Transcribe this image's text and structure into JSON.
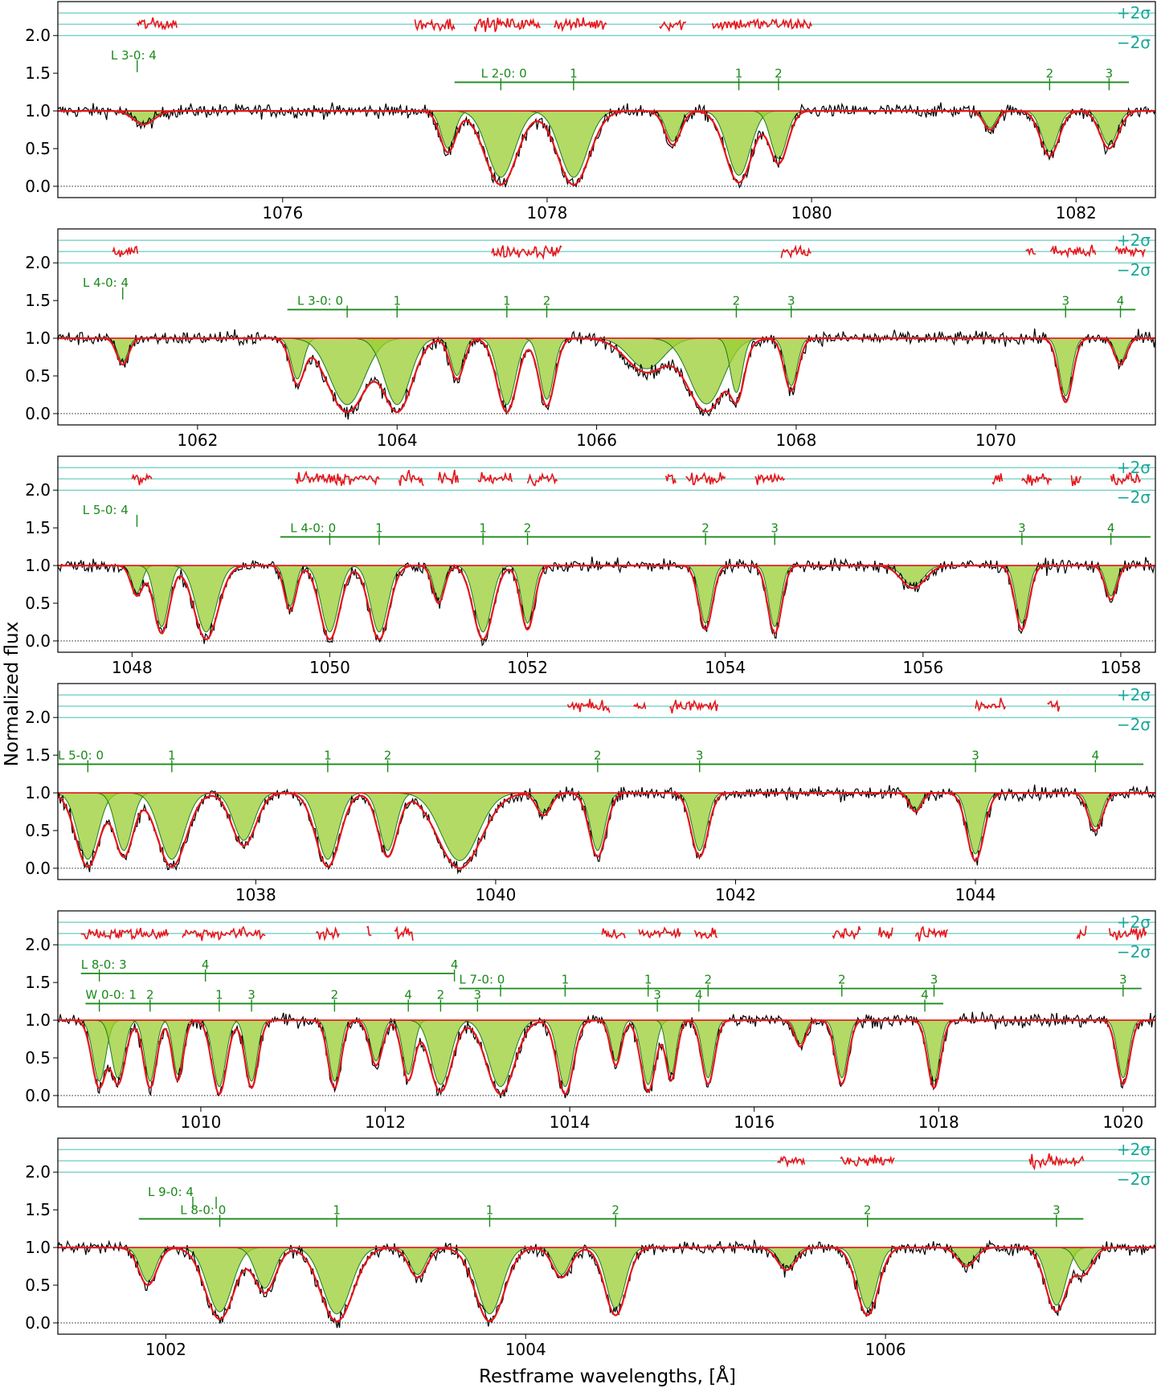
{
  "chart_data": {
    "type": "line",
    "ylabel": "Normalized flux",
    "xlabel": "Restframe wavelengths, [Å]",
    "residual_labels": [
      "+2σ",
      "−2σ"
    ],
    "yticks": [
      "0.0",
      "0.5",
      "1.0",
      "1.5",
      "2.0"
    ],
    "ylim": [
      -0.15,
      2.45
    ],
    "colors": {
      "data": "#000000",
      "model": "#e8141a",
      "component_fill": "#9acd32",
      "component_line": "#1e7b1e",
      "residual": "#e8141a",
      "sigma_lines": "#40c0b0",
      "line_markers": "#1a8a1a"
    },
    "panels": [
      {
        "xlim": [
          1074.3,
          1082.6
        ],
        "xticks": [
          "1076",
          "1078",
          "1080",
          "1082"
        ],
        "xtick_values": [
          1076,
          1078,
          1080,
          1082
        ],
        "systems": [
          {
            "label": "L 3-0: 4",
            "x": 1074.7,
            "y": 1.62,
            "marks": [
              1074.9
            ]
          },
          {
            "label": "L 2-0: 0",
            "x": 1077.5,
            "y": 1.38,
            "range": [
              1077.3,
              1082.4
            ],
            "marks": [
              1077.65,
              1078.2,
              1079.45,
              1079.75,
              1081.8,
              1082.25
            ],
            "mark_labels": [
              "0",
              "1",
              "1",
              "2",
              "2",
              "3"
            ]
          }
        ],
        "absorptions": [
          {
            "c": 1074.95,
            "d": 0.18,
            "w": 0.08
          },
          {
            "c": 1077.25,
            "d": 0.55,
            "w": 0.06
          },
          {
            "c": 1077.65,
            "d": 0.98,
            "w": 0.12
          },
          {
            "c": 1078.2,
            "d": 0.98,
            "w": 0.12
          },
          {
            "c": 1078.95,
            "d": 0.45,
            "w": 0.06
          },
          {
            "c": 1079.45,
            "d": 0.95,
            "w": 0.1
          },
          {
            "c": 1079.75,
            "d": 0.7,
            "w": 0.07
          },
          {
            "c": 1081.35,
            "d": 0.25,
            "w": 0.05
          },
          {
            "c": 1081.8,
            "d": 0.6,
            "w": 0.07
          },
          {
            "c": 1082.25,
            "d": 0.5,
            "w": 0.07
          }
        ],
        "residual_ranges": [
          [
            1074.9,
            1075.2
          ],
          [
            1077.0,
            1077.3
          ],
          [
            1077.45,
            1077.95
          ],
          [
            1078.05,
            1078.45
          ],
          [
            1078.85,
            1079.05
          ],
          [
            1079.25,
            1080.0
          ]
        ]
      },
      {
        "xlim": [
          1060.6,
          1071.6
        ],
        "xticks": [
          "1062",
          "1064",
          "1066",
          "1068",
          "1070"
        ],
        "xtick_values": [
          1062,
          1064,
          1066,
          1068,
          1070
        ],
        "systems": [
          {
            "label": "L 4-0: 4",
            "x": 1060.85,
            "y": 1.62,
            "marks": [
              1061.25
            ]
          },
          {
            "label": "L 3-0: 0",
            "x": 1063.0,
            "y": 1.38,
            "range": [
              1062.9,
              1071.4
            ],
            "marks": [
              1063.5,
              1064.0,
              1065.1,
              1065.5,
              1067.4,
              1067.95,
              1070.7,
              1071.25
            ],
            "mark_labels": [
              "0",
              "1",
              "1",
              "2",
              "2",
              "3",
              "3",
              "4"
            ]
          }
        ],
        "absorptions": [
          {
            "c": 1061.25,
            "d": 0.35,
            "w": 0.06
          },
          {
            "c": 1063.0,
            "d": 0.6,
            "w": 0.07
          },
          {
            "c": 1063.5,
            "d": 0.98,
            "w": 0.2
          },
          {
            "c": 1064.0,
            "d": 0.98,
            "w": 0.15
          },
          {
            "c": 1064.6,
            "d": 0.55,
            "w": 0.07
          },
          {
            "c": 1065.1,
            "d": 0.98,
            "w": 0.1
          },
          {
            "c": 1065.5,
            "d": 0.9,
            "w": 0.08
          },
          {
            "c": 1066.5,
            "d": 0.45,
            "w": 0.2
          },
          {
            "c": 1067.1,
            "d": 0.97,
            "w": 0.2
          },
          {
            "c": 1067.4,
            "d": 0.8,
            "w": 0.07
          },
          {
            "c": 1067.95,
            "d": 0.7,
            "w": 0.07
          },
          {
            "c": 1070.7,
            "d": 0.85,
            "w": 0.07
          },
          {
            "c": 1071.25,
            "d": 0.35,
            "w": 0.06
          }
        ],
        "residual_ranges": [
          [
            1061.15,
            1061.4
          ],
          [
            1064.95,
            1065.65
          ],
          [
            1067.85,
            1068.15
          ],
          [
            1070.3,
            1070.4
          ],
          [
            1070.55,
            1071.0
          ],
          [
            1071.2,
            1071.5
          ]
        ]
      },
      {
        "xlim": [
          1047.25,
          1058.35
        ],
        "xticks": [
          "1048",
          "1050",
          "1052",
          "1054",
          "1056",
          "1058"
        ],
        "xtick_values": [
          1048,
          1050,
          1052,
          1054,
          1056,
          1058
        ],
        "systems": [
          {
            "label": "L 5-0: 4",
            "x": 1047.5,
            "y": 1.62,
            "marks": [
              1048.05
            ]
          },
          {
            "label": "L 4-0: 0",
            "x": 1049.6,
            "y": 1.38,
            "range": [
              1049.5,
              1058.3
            ],
            "marks": [
              1050.0,
              1050.5,
              1051.55,
              1052.0,
              1053.8,
              1054.5,
              1057.0,
              1057.9
            ],
            "mark_labels": [
              "0",
              "1",
              "1",
              "2",
              "2",
              "3",
              "3",
              "4"
            ]
          }
        ],
        "absorptions": [
          {
            "c": 1048.05,
            "d": 0.4,
            "w": 0.06
          },
          {
            "c": 1048.3,
            "d": 0.9,
            "w": 0.08
          },
          {
            "c": 1048.75,
            "d": 0.98,
            "w": 0.12
          },
          {
            "c": 1049.6,
            "d": 0.6,
            "w": 0.06
          },
          {
            "c": 1050.0,
            "d": 0.98,
            "w": 0.1
          },
          {
            "c": 1050.5,
            "d": 0.98,
            "w": 0.1
          },
          {
            "c": 1051.1,
            "d": 0.5,
            "w": 0.06
          },
          {
            "c": 1051.55,
            "d": 0.98,
            "w": 0.1
          },
          {
            "c": 1052.0,
            "d": 0.85,
            "w": 0.07
          },
          {
            "c": 1053.8,
            "d": 0.85,
            "w": 0.07
          },
          {
            "c": 1054.5,
            "d": 0.9,
            "w": 0.07
          },
          {
            "c": 1055.9,
            "d": 0.3,
            "w": 0.12
          },
          {
            "c": 1057.0,
            "d": 0.85,
            "w": 0.07
          },
          {
            "c": 1057.9,
            "d": 0.45,
            "w": 0.06
          }
        ],
        "residual_ranges": [
          [
            1048.0,
            1048.2
          ],
          [
            1049.65,
            1050.5
          ],
          [
            1050.7,
            1050.95
          ],
          [
            1051.1,
            1051.3
          ],
          [
            1051.5,
            1051.85
          ],
          [
            1052.0,
            1052.3
          ],
          [
            1053.4,
            1053.5
          ],
          [
            1053.6,
            1054.0
          ],
          [
            1054.3,
            1054.6
          ],
          [
            1056.7,
            1056.8
          ],
          [
            1057.0,
            1057.3
          ],
          [
            1057.5,
            1057.6
          ],
          [
            1057.9,
            1058.2
          ]
        ]
      },
      {
        "xlim": [
          1036.35,
          1045.5
        ],
        "xticks": [
          "1038",
          "1040",
          "1042",
          "1044"
        ],
        "xtick_values": [
          1038,
          1040,
          1042,
          1044
        ],
        "systems": [
          {
            "label": "L 5-0: 0",
            "x": 1036.35,
            "y": 1.38,
            "range": [
              1036.35,
              1045.4
            ],
            "marks": [
              1036.6,
              1037.3,
              1038.6,
              1039.1,
              1040.85,
              1041.7,
              1044.0,
              1045.0
            ],
            "mark_labels": [
              "0",
              "1",
              "1",
              "2",
              "2",
              "3",
              "3",
              "4"
            ]
          }
        ],
        "absorptions": [
          {
            "c": 1036.6,
            "d": 0.98,
            "w": 0.1
          },
          {
            "c": 1036.9,
            "d": 0.85,
            "w": 0.08
          },
          {
            "c": 1037.3,
            "d": 0.98,
            "w": 0.12
          },
          {
            "c": 1037.9,
            "d": 0.7,
            "w": 0.1
          },
          {
            "c": 1038.6,
            "d": 0.98,
            "w": 0.1
          },
          {
            "c": 1039.1,
            "d": 0.85,
            "w": 0.08
          },
          {
            "c": 1039.7,
            "d": 1.0,
            "w": 0.18
          },
          {
            "c": 1040.4,
            "d": 0.3,
            "w": 0.06
          },
          {
            "c": 1040.85,
            "d": 0.85,
            "w": 0.07
          },
          {
            "c": 1041.7,
            "d": 0.85,
            "w": 0.07
          },
          {
            "c": 1043.5,
            "d": 0.25,
            "w": 0.05
          },
          {
            "c": 1044.0,
            "d": 0.9,
            "w": 0.07
          },
          {
            "c": 1045.0,
            "d": 0.5,
            "w": 0.06
          }
        ],
        "residual_ranges": [
          [
            1040.6,
            1040.95
          ],
          [
            1041.15,
            1041.25
          ],
          [
            1041.45,
            1041.85
          ],
          [
            1044.0,
            1044.25
          ],
          [
            1044.6,
            1044.7
          ]
        ]
      },
      {
        "xlim": [
          1008.45,
          1020.35
        ],
        "xticks": [
          "1010",
          "1012",
          "1014",
          "1016",
          "1018",
          "1020"
        ],
        "xtick_values": [
          1010,
          1012,
          1014,
          1016,
          1018,
          1020
        ],
        "systems": [
          {
            "label": "L 8-0: 3",
            "x": 1008.7,
            "y": 1.62,
            "range": [
              1008.7,
              1012.75
            ],
            "marks": [
              1008.9,
              1010.05,
              1012.75
            ],
            "mark_labels": [
              "3",
              "4",
              "4"
            ]
          },
          {
            "label": "L 7-0: 0",
            "x": 1012.8,
            "y": 1.42,
            "range": [
              1012.8,
              1020.2
            ],
            "marks": [
              1013.25,
              1013.95,
              1014.85,
              1015.5,
              1016.95,
              1017.95,
              1020.0
            ],
            "mark_labels": [
              "0",
              "1",
              "1",
              "2",
              "2",
              "3",
              "3"
            ]
          },
          {
            "label": "W 0-0: 1",
            "x": 1008.75,
            "y": 1.22,
            "range": [
              1008.75,
              1018.05
            ],
            "marks": [
              1008.9,
              1009.45,
              1010.2,
              1010.55,
              1011.45,
              1012.25,
              1012.6,
              1013.0,
              1014.95,
              1015.4,
              1017.85
            ],
            "mark_labels": [
              "0",
              "2",
              "1",
              "3",
              "2",
              "4",
              "2",
              "3",
              "3",
              "4",
              "4"
            ]
          }
        ],
        "absorptions": [
          {
            "c": 1008.9,
            "d": 0.9,
            "w": 0.08
          },
          {
            "c": 1009.1,
            "d": 0.85,
            "w": 0.08
          },
          {
            "c": 1009.45,
            "d": 0.9,
            "w": 0.07
          },
          {
            "c": 1009.75,
            "d": 0.8,
            "w": 0.06
          },
          {
            "c": 1010.2,
            "d": 0.98,
            "w": 0.08
          },
          {
            "c": 1010.55,
            "d": 0.9,
            "w": 0.07
          },
          {
            "c": 1011.45,
            "d": 0.9,
            "w": 0.07
          },
          {
            "c": 1011.9,
            "d": 0.6,
            "w": 0.07
          },
          {
            "c": 1012.25,
            "d": 0.8,
            "w": 0.07
          },
          {
            "c": 1012.6,
            "d": 0.95,
            "w": 0.12
          },
          {
            "c": 1013.25,
            "d": 0.98,
            "w": 0.15
          },
          {
            "c": 1013.95,
            "d": 0.98,
            "w": 0.09
          },
          {
            "c": 1014.5,
            "d": 0.6,
            "w": 0.06
          },
          {
            "c": 1014.85,
            "d": 0.95,
            "w": 0.08
          },
          {
            "c": 1015.1,
            "d": 0.8,
            "w": 0.06
          },
          {
            "c": 1015.5,
            "d": 0.85,
            "w": 0.07
          },
          {
            "c": 1016.5,
            "d": 0.35,
            "w": 0.06
          },
          {
            "c": 1016.95,
            "d": 0.85,
            "w": 0.07
          },
          {
            "c": 1017.95,
            "d": 0.9,
            "w": 0.07
          },
          {
            "c": 1020.0,
            "d": 0.85,
            "w": 0.07
          }
        ],
        "residual_ranges": [
          [
            1008.7,
            1009.65
          ],
          [
            1009.8,
            1010.7
          ],
          [
            1011.25,
            1011.5
          ],
          [
            1011.8,
            1011.85
          ],
          [
            1012.1,
            1012.3
          ],
          [
            1014.35,
            1014.6
          ],
          [
            1014.75,
            1015.2
          ],
          [
            1015.35,
            1015.6
          ],
          [
            1016.85,
            1017.15
          ],
          [
            1017.35,
            1017.5
          ],
          [
            1017.75,
            1018.1
          ],
          [
            1019.5,
            1019.6
          ],
          [
            1019.85,
            1020.25
          ]
        ]
      },
      {
        "xlim": [
          1001.4,
          1007.5
        ],
        "xticks": [
          "1002",
          "1004",
          "1006"
        ],
        "xtick_values": [
          1002,
          1004,
          1006
        ],
        "systems": [
          {
            "label": "L 9-0: 4",
            "x": 1001.9,
            "y": 1.62,
            "marks": [
              1002.15,
              1002.28
            ]
          },
          {
            "label": "L 8-0: 0",
            "x": 1002.08,
            "y": 1.38,
            "range": [
              1001.85,
              1007.1
            ],
            "marks": [
              1002.3,
              1002.95,
              1003.8,
              1004.5,
              1005.9,
              1006.95
            ],
            "mark_labels": [
              "0",
              "1",
              "1",
              "2",
              "2",
              "3"
            ]
          }
        ],
        "absorptions": [
          {
            "c": 1001.9,
            "d": 0.5,
            "w": 0.05
          },
          {
            "c": 1002.3,
            "d": 0.95,
            "w": 0.08
          },
          {
            "c": 1002.55,
            "d": 0.6,
            "w": 0.06
          },
          {
            "c": 1002.95,
            "d": 0.98,
            "w": 0.09
          },
          {
            "c": 1003.4,
            "d": 0.4,
            "w": 0.05
          },
          {
            "c": 1003.8,
            "d": 0.98,
            "w": 0.08
          },
          {
            "c": 1004.2,
            "d": 0.4,
            "w": 0.05
          },
          {
            "c": 1004.5,
            "d": 0.9,
            "w": 0.06
          },
          {
            "c": 1005.45,
            "d": 0.3,
            "w": 0.05
          },
          {
            "c": 1005.9,
            "d": 0.9,
            "w": 0.06
          },
          {
            "c": 1006.45,
            "d": 0.25,
            "w": 0.05
          },
          {
            "c": 1006.95,
            "d": 0.85,
            "w": 0.06
          },
          {
            "c": 1007.1,
            "d": 0.35,
            "w": 0.05
          }
        ],
        "residual_ranges": [
          [
            1005.4,
            1005.55
          ],
          [
            1005.75,
            1006.05
          ],
          [
            1006.8,
            1007.1
          ]
        ]
      }
    ]
  }
}
